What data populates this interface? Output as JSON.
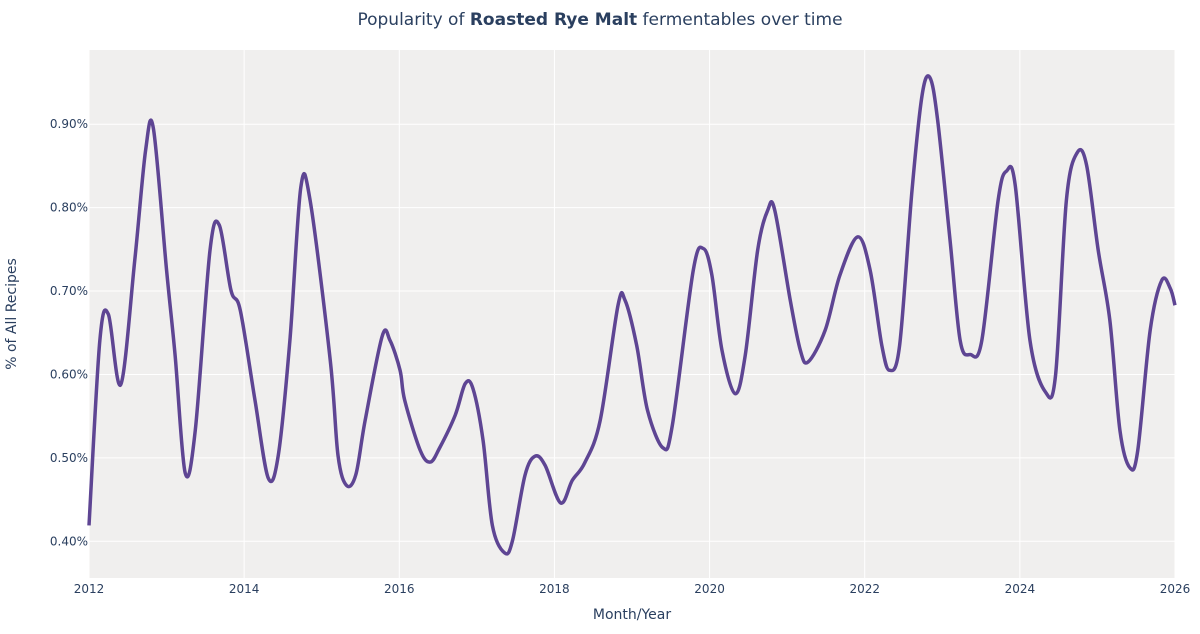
{
  "chart_data": {
    "type": "line",
    "title": {
      "prefix": "Popularity of ",
      "bold": "Roasted Rye Malt",
      "suffix": " fermentables over time"
    },
    "xlabel": "Month/Year",
    "ylabel": "% of All Recipes",
    "xlim": [
      2012,
      2026
    ],
    "ylim": [
      0.356,
      0.989
    ],
    "x_ticks": [
      2012,
      2014,
      2016,
      2018,
      2020,
      2022,
      2024,
      2026
    ],
    "y_ticks": [
      0.4,
      0.5,
      0.6,
      0.7,
      0.8,
      0.9
    ],
    "y_tick_labels": [
      "0.40%",
      "0.50%",
      "0.60%",
      "0.70%",
      "0.80%",
      "0.90%"
    ],
    "grid": true,
    "colors": {
      "line": "#5e4593",
      "plot_bg": "#f0efee",
      "grid": "#ffffff"
    },
    "series": [
      {
        "x": [
          2012.0,
          2012.14,
          2012.25,
          2012.41,
          2012.59,
          2012.73,
          2012.83,
          2013.0,
          2013.11,
          2013.24,
          2013.37,
          2013.56,
          2013.68,
          2013.83,
          2013.95,
          2014.14,
          2014.31,
          2014.44,
          2014.59,
          2014.73,
          2014.85,
          2015.11,
          2015.21,
          2015.32,
          2015.44,
          2015.56,
          2015.78,
          2015.88,
          2016.01,
          2016.07,
          2016.27,
          2016.4,
          2016.52,
          2016.72,
          2016.85,
          2016.95,
          2017.08,
          2017.2,
          2017.36,
          2017.46,
          2017.62,
          2017.75,
          2017.88,
          2018.08,
          2018.23,
          2018.39,
          2018.59,
          2018.82,
          2018.91,
          2019.06,
          2019.2,
          2019.4,
          2019.52,
          2019.79,
          2019.92,
          2020.03,
          2020.16,
          2020.33,
          2020.46,
          2020.62,
          2020.75,
          2020.84,
          2021.04,
          2021.17,
          2021.27,
          2021.49,
          2021.68,
          2021.91,
          2022.07,
          2022.22,
          2022.32,
          2022.45,
          2022.61,
          2022.74,
          2022.84,
          2022.94,
          2023.1,
          2023.23,
          2023.36,
          2023.51,
          2023.72,
          2023.83,
          2023.94,
          2024.13,
          2024.33,
          2024.46,
          2024.6,
          2024.74,
          2024.86,
          2025.01,
          2025.16,
          2025.29,
          2025.42,
          2025.52,
          2025.68,
          2025.83,
          2025.94,
          2026.0
        ],
        "y": [
          0.419,
          0.641,
          0.672,
          0.588,
          0.737,
          0.869,
          0.895,
          0.725,
          0.623,
          0.482,
          0.533,
          0.749,
          0.779,
          0.701,
          0.677,
          0.569,
          0.476,
          0.503,
          0.641,
          0.824,
          0.809,
          0.617,
          0.503,
          0.467,
          0.48,
          0.545,
          0.646,
          0.641,
          0.605,
          0.569,
          0.509,
          0.495,
          0.512,
          0.551,
          0.589,
          0.583,
          0.521,
          0.419,
          0.386,
          0.401,
          0.479,
          0.502,
          0.491,
          0.446,
          0.473,
          0.494,
          0.545,
          0.683,
          0.689,
          0.635,
          0.557,
          0.512,
          0.539,
          0.725,
          0.751,
          0.719,
          0.629,
          0.577,
          0.623,
          0.749,
          0.797,
          0.797,
          0.689,
          0.629,
          0.615,
          0.653,
          0.719,
          0.765,
          0.725,
          0.635,
          0.605,
          0.635,
          0.821,
          0.935,
          0.956,
          0.905,
          0.761,
          0.641,
          0.624,
          0.641,
          0.809,
          0.844,
          0.827,
          0.641,
          0.579,
          0.599,
          0.809,
          0.866,
          0.851,
          0.749,
          0.665,
          0.533,
          0.488,
          0.509,
          0.653,
          0.713,
          0.703,
          0.683
        ]
      }
    ]
  }
}
